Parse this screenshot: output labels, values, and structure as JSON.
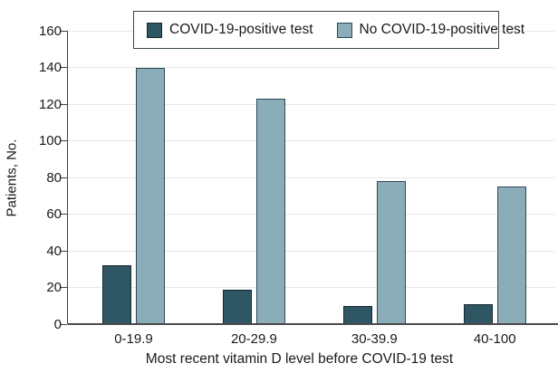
{
  "chart_data": {
    "type": "bar",
    "title": "",
    "categories": [
      "0-19.9",
      "20-29.9",
      "30-39.9",
      "40-100"
    ],
    "series": [
      {
        "name": "COVID-19-positive test",
        "values": [
          32,
          19,
          10,
          11
        ],
        "color": "#2F5663",
        "border_color": "#16282F"
      },
      {
        "name": "No COVID-19-positive test",
        "values": [
          140,
          123,
          78,
          75
        ],
        "color": "#8BACB9",
        "border_color": "#2C4A54"
      }
    ],
    "xlabel": "Most recent vitamin D level before COVID-19 test",
    "ylabel": "Patients, No.",
    "ylim": [
      0,
      160
    ],
    "yticks": [
      0,
      20,
      40,
      60,
      80,
      100,
      120,
      140,
      160
    ],
    "grid": "horizontal",
    "gridline_color": "#e7e7e7",
    "axis_color": "#404040",
    "text_color": "#1a1a1a",
    "legend_position": "top-center-boxed"
  }
}
